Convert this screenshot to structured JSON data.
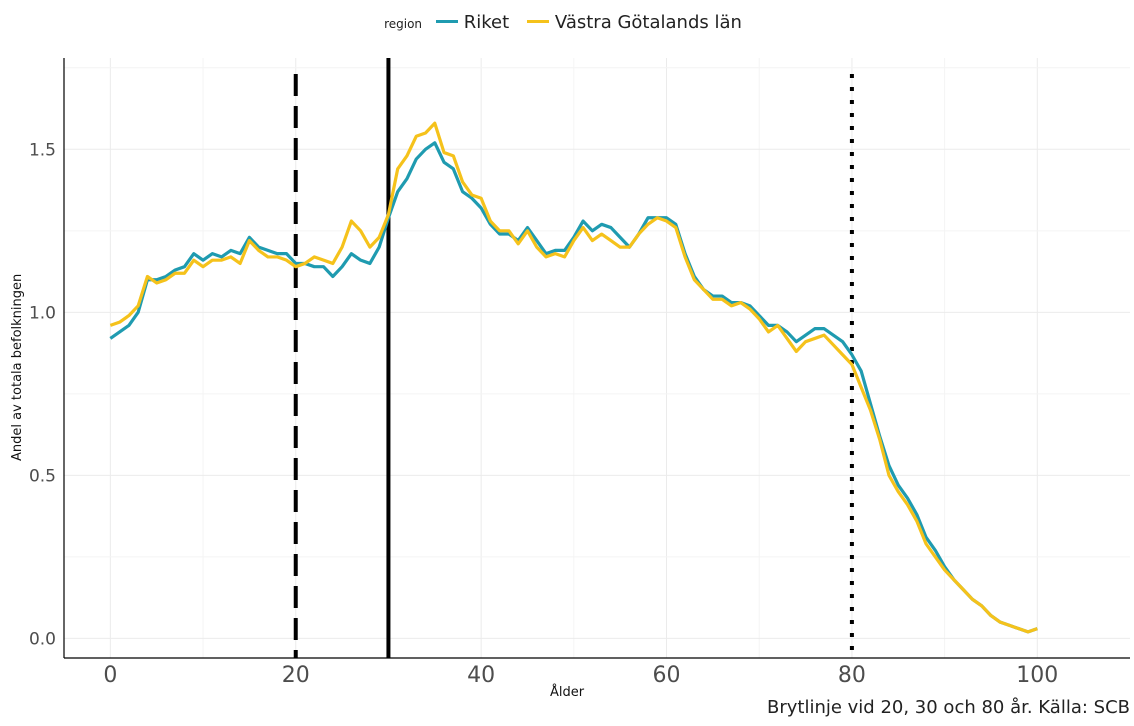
{
  "chart_data": {
    "type": "line",
    "title": "",
    "legend_title": "region",
    "legend_position": "top",
    "xlabel": "Ålder",
    "ylabel": "Andel av totala befolkningen",
    "caption": "Brytlinje vid 20, 30 och 80 år. Källa: SCB",
    "xlim": [
      -5,
      110
    ],
    "ylim": [
      -0.06,
      1.78
    ],
    "x_ticks": [
      0,
      20,
      40,
      60,
      80,
      100
    ],
    "y_ticks": [
      0.0,
      0.5,
      1.0,
      1.5
    ],
    "x_tick_labels": [
      "0",
      "20",
      "40",
      "60",
      "80",
      "100"
    ],
    "y_tick_labels": [
      "0.0",
      "0.5",
      "1.0",
      "1.5"
    ],
    "grid": true,
    "vlines": [
      {
        "x": 20,
        "style": "dashed"
      },
      {
        "x": 30,
        "style": "solid"
      },
      {
        "x": 80,
        "style": "dotted"
      }
    ],
    "x": [
      0,
      1,
      2,
      3,
      4,
      5,
      6,
      7,
      8,
      9,
      10,
      11,
      12,
      13,
      14,
      15,
      16,
      17,
      18,
      19,
      20,
      21,
      22,
      23,
      24,
      25,
      26,
      27,
      28,
      29,
      30,
      31,
      32,
      33,
      34,
      35,
      36,
      37,
      38,
      39,
      40,
      41,
      42,
      43,
      44,
      45,
      46,
      47,
      48,
      49,
      50,
      51,
      52,
      53,
      54,
      55,
      56,
      57,
      58,
      59,
      60,
      61,
      62,
      63,
      64,
      65,
      66,
      67,
      68,
      69,
      70,
      71,
      72,
      73,
      74,
      75,
      76,
      77,
      78,
      79,
      80,
      81,
      82,
      83,
      84,
      85,
      86,
      87,
      88,
      89,
      90,
      91,
      92,
      93,
      94,
      95,
      96,
      97,
      98,
      99,
      100
    ],
    "series": [
      {
        "name": "Riket",
        "color": "#1f9bb0",
        "values": [
          0.92,
          0.94,
          0.96,
          1.0,
          1.1,
          1.1,
          1.11,
          1.13,
          1.14,
          1.18,
          1.16,
          1.18,
          1.17,
          1.19,
          1.18,
          1.23,
          1.2,
          1.19,
          1.18,
          1.18,
          1.15,
          1.15,
          1.14,
          1.14,
          1.11,
          1.14,
          1.18,
          1.16,
          1.15,
          1.2,
          1.29,
          1.37,
          1.41,
          1.47,
          1.5,
          1.52,
          1.46,
          1.44,
          1.37,
          1.35,
          1.32,
          1.27,
          1.24,
          1.24,
          1.22,
          1.26,
          1.22,
          1.18,
          1.19,
          1.19,
          1.23,
          1.28,
          1.25,
          1.27,
          1.26,
          1.23,
          1.2,
          1.24,
          1.29,
          1.29,
          1.29,
          1.27,
          1.18,
          1.11,
          1.07,
          1.05,
          1.05,
          1.03,
          1.03,
          1.02,
          0.99,
          0.96,
          0.96,
          0.94,
          0.91,
          0.93,
          0.95,
          0.95,
          0.93,
          0.91,
          0.87,
          0.82,
          0.72,
          0.62,
          0.53,
          0.47,
          0.43,
          0.38,
          0.31,
          0.27,
          0.22,
          0.18,
          0.15,
          0.12,
          0.1,
          0.07,
          0.05,
          0.04,
          0.03,
          0.02,
          0.03
        ]
      },
      {
        "name": "Västra Götalands län",
        "color": "#f5c21b",
        "values": [
          0.96,
          0.97,
          0.99,
          1.02,
          1.11,
          1.09,
          1.1,
          1.12,
          1.12,
          1.16,
          1.14,
          1.16,
          1.16,
          1.17,
          1.15,
          1.22,
          1.19,
          1.17,
          1.17,
          1.16,
          1.14,
          1.15,
          1.17,
          1.16,
          1.15,
          1.2,
          1.28,
          1.25,
          1.2,
          1.23,
          1.3,
          1.44,
          1.48,
          1.54,
          1.55,
          1.58,
          1.49,
          1.48,
          1.4,
          1.36,
          1.35,
          1.28,
          1.25,
          1.25,
          1.21,
          1.25,
          1.2,
          1.17,
          1.18,
          1.17,
          1.22,
          1.26,
          1.22,
          1.24,
          1.22,
          1.2,
          1.2,
          1.24,
          1.27,
          1.29,
          1.28,
          1.26,
          1.17,
          1.1,
          1.07,
          1.04,
          1.04,
          1.02,
          1.03,
          1.01,
          0.98,
          0.94,
          0.96,
          0.92,
          0.88,
          0.91,
          0.92,
          0.93,
          0.9,
          0.87,
          0.84,
          0.77,
          0.7,
          0.61,
          0.5,
          0.45,
          0.41,
          0.36,
          0.29,
          0.25,
          0.21,
          0.18,
          0.15,
          0.12,
          0.1,
          0.07,
          0.05,
          0.04,
          0.03,
          0.02,
          0.03
        ]
      }
    ]
  }
}
